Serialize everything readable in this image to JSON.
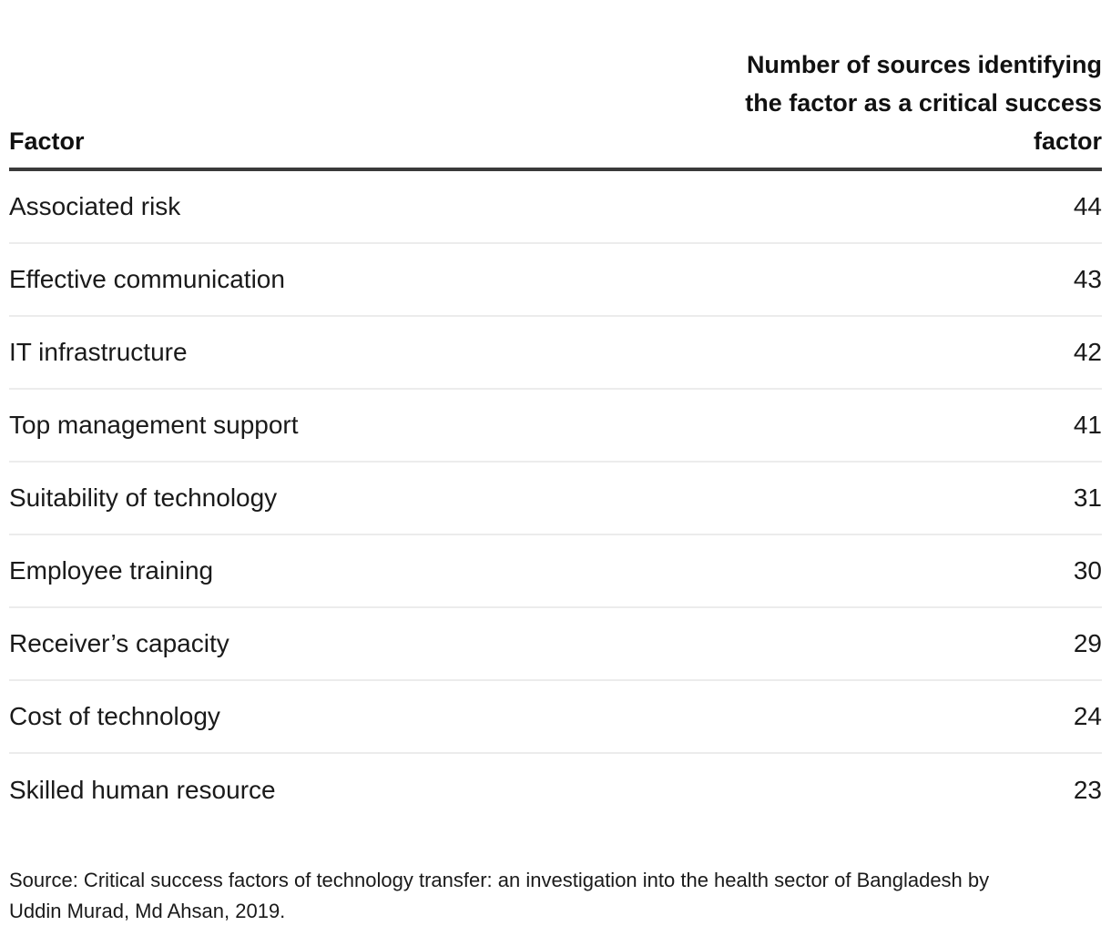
{
  "table": {
    "header": {
      "factor_label": "Factor",
      "count_label": "Number of sources identifying the factor as a critical success factor",
      "count_label_lines": [
        "Number of sources identifying",
        "the factor as a critical success",
        "factor"
      ]
    },
    "rows": [
      {
        "factor": "Associated risk",
        "count": "44"
      },
      {
        "factor": "Effective communication",
        "count": "43"
      },
      {
        "factor": "IT infrastructure",
        "count": "42"
      },
      {
        "factor": "Top management support",
        "count": "41"
      },
      {
        "factor": "Suitability of technology",
        "count": "31"
      },
      {
        "factor": "Employee training",
        "count": "30"
      },
      {
        "factor": "Receiver’s capacity",
        "count": "29"
      },
      {
        "factor": "Cost of technology",
        "count": "24"
      },
      {
        "factor": "Skilled human resource",
        "count": "23"
      }
    ]
  },
  "source_note": "Source: Critical success factors of technology transfer: an investigation into the health sector of Bangladesh by Uddin Murad, Md Ahsan, 2019.",
  "colors": {
    "text": "#1a1a1a",
    "header_text": "#111111",
    "header_rule": "#3a3a3a",
    "row_divider": "#ececec",
    "background": "#ffffff"
  },
  "chart_data": {
    "type": "table",
    "title": "",
    "columns": [
      "Factor",
      "Number of sources identifying the factor as a critical success factor"
    ],
    "categories": [
      "Associated risk",
      "Effective communication",
      "IT infrastructure",
      "Top management support",
      "Suitability of technology",
      "Employee training",
      "Receiver’s capacity",
      "Cost of technology",
      "Skilled human resource"
    ],
    "values": [
      44,
      43,
      42,
      41,
      31,
      30,
      29,
      24,
      23
    ],
    "source": "Critical success factors of technology transfer: an investigation into the health sector of Bangladesh by Uddin Murad, Md Ahsan, 2019."
  }
}
